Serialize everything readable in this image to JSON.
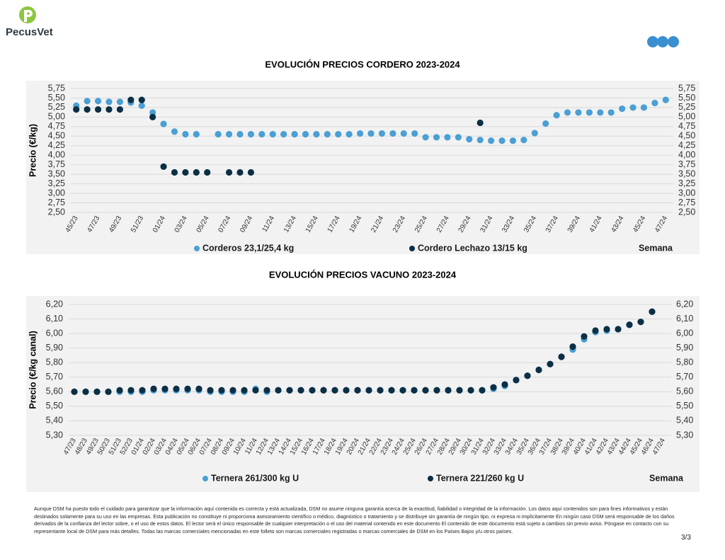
{
  "header": {
    "logo_text": "PecusVet"
  },
  "chart_data": [
    {
      "type": "scatter",
      "title": "EVOLUCIÓN PRECIOS CORDERO 2023-2024",
      "ylabel": "Precio (€/kg)",
      "xlabel": "Semana",
      "categories": [
        "45/23",
        null,
        "47/23",
        null,
        "49/23",
        null,
        "51/23",
        null,
        "01/24",
        null,
        "03/24",
        null,
        "05/24",
        null,
        "07/24",
        null,
        "09/24",
        null,
        "11/24",
        null,
        "13/24",
        null,
        "15/24",
        null,
        "17/24",
        null,
        "19/24",
        null,
        "21/24",
        null,
        "23/24",
        null,
        "25/24",
        null,
        "27/24",
        null,
        "29/24",
        null,
        "31/24",
        null,
        "33/24",
        null,
        "35/24",
        null,
        "37/24",
        null,
        "39/24",
        null,
        "41/24",
        null,
        "43/24",
        null,
        "45/24",
        null,
        "47/24"
      ],
      "series": [
        {
          "name": "Corderos 23,1/25,4 kg",
          "color": "#4a9fd4",
          "values": [
            5.3,
            5.42,
            5.42,
            5.4,
            5.4,
            5.38,
            5.3,
            5.12,
            4.82,
            4.62,
            4.55,
            4.55,
            null,
            4.55,
            4.55,
            4.55,
            4.55,
            4.55,
            4.55,
            4.55,
            4.55,
            4.55,
            4.55,
            4.55,
            4.55,
            4.55,
            4.57,
            4.57,
            4.57,
            4.57,
            4.57,
            4.57,
            4.47,
            4.47,
            4.47,
            4.47,
            4.42,
            4.4,
            4.38,
            4.38,
            4.38,
            4.4,
            4.58,
            4.83,
            5.05,
            5.12,
            5.12,
            5.12,
            5.12,
            5.12,
            5.22,
            5.25,
            5.25,
            5.37,
            5.45
          ]
        },
        {
          "name": "Cordero Lechazo 13/15 kg",
          "color": "#0b2f45",
          "values": [
            5.2,
            5.2,
            5.2,
            5.2,
            5.2,
            5.45,
            5.45,
            5.0,
            3.7,
            3.55,
            3.55,
            3.55,
            3.55,
            null,
            3.55,
            3.55,
            3.55,
            null,
            null,
            null,
            null,
            null,
            null,
            null,
            null,
            null,
            null,
            null,
            null,
            null,
            null,
            null,
            null,
            null,
            null,
            null,
            null,
            4.85,
            null,
            null,
            null,
            null,
            null,
            null,
            null,
            null,
            null,
            null,
            null,
            null,
            null,
            null,
            null,
            null,
            null
          ]
        }
      ],
      "ylim": [
        2.5,
        5.75
      ],
      "yticks": [
        {
          "value": 2.5,
          "label": "2,50"
        },
        {
          "value": 2.75,
          "label": "2,75"
        },
        {
          "value": 3,
          "label": "3,00"
        },
        {
          "value": 3.25,
          "label": "3,25"
        },
        {
          "value": 3.5,
          "label": "3,50"
        },
        {
          "value": 3.75,
          "label": "3,75"
        },
        {
          "value": 4,
          "label": "4,00"
        },
        {
          "value": 4.25,
          "label": "4,25"
        },
        {
          "value": 4.5,
          "label": "4,50"
        },
        {
          "value": 4.75,
          "label": "4,75"
        },
        {
          "value": 5,
          "label": "5,00"
        },
        {
          "value": 5.25,
          "label": "5,25"
        },
        {
          "value": 5.5,
          "label": "5,50"
        },
        {
          "value": 5.75,
          "label": "5,75"
        }
      ],
      "y2lim": [
        2.5,
        5.75
      ],
      "y2ticks": [
        {
          "value": 2.5,
          "label": "2,50"
        },
        {
          "value": 2.75,
          "label": "2,75"
        },
        {
          "value": 3,
          "label": "3,00"
        },
        {
          "value": 3.25,
          "label": "3,25"
        },
        {
          "value": 3.5,
          "label": "3,50"
        },
        {
          "value": 3.75,
          "label": "3,75"
        },
        {
          "value": 4,
          "label": "4,00"
        },
        {
          "value": 4.25,
          "label": "4,25"
        },
        {
          "value": 4.5,
          "label": "4,50"
        },
        {
          "value": 4.75,
          "label": "4,75"
        },
        {
          "value": 5,
          "label": "5,00"
        },
        {
          "value": 5.25,
          "label": "5,25"
        },
        {
          "value": 5.5,
          "label": "5,50"
        },
        {
          "value": 5.75,
          "label": "5,75"
        }
      ],
      "grid": true,
      "legend": "bottom"
    },
    {
      "type": "scatter",
      "title": "EVOLUCIÓN PRECIOS VACUNO 2023-2024",
      "ylabel": "Precio (€/kg canal)",
      "xlabel": "Semana",
      "categories": [
        "47/23",
        "48/23",
        "49/23",
        "50/23",
        "51/23",
        "52/23",
        "01/24",
        "02/24",
        "03/24",
        "04/24",
        "05/24",
        "06/24",
        "07/24",
        "08/24",
        "09/24",
        "10/24",
        "11/24",
        "12/24",
        "13/24",
        "14/24",
        "15/24",
        "16/24",
        "17/24",
        "18/24",
        "19/24",
        "20/24",
        "21/24",
        "22/24",
        "23/24",
        "24/24",
        "25/24",
        "26/24",
        "27/24",
        "28/24",
        "29/24",
        "30/24",
        "31/24",
        "32/24",
        "33/24",
        "34/24",
        "35/24",
        "36/24",
        "37/24",
        "38/24",
        "39/24",
        "40/24",
        "41/24",
        "42/24",
        "43/24",
        "44/24",
        "45/24",
        "46/24",
        "47/24"
      ],
      "series": [
        {
          "name": "Ternera 261/300 kg U",
          "color": "#4a9fd4",
          "values": [
            5.6,
            5.6,
            5.6,
            5.6,
            5.6,
            5.6,
            5.6,
            5.61,
            5.61,
            5.61,
            5.61,
            5.61,
            5.6,
            5.6,
            5.6,
            5.6,
            5.62,
            5.6,
            5.61,
            5.61,
            5.61,
            5.61,
            5.61,
            5.61,
            5.61,
            5.61,
            5.61,
            5.61,
            5.61,
            5.61,
            5.61,
            5.61,
            5.61,
            5.61,
            5.61,
            5.61,
            5.61,
            5.62,
            5.64,
            5.68,
            5.71,
            5.75,
            5.79,
            5.84,
            5.89,
            5.96,
            6.01,
            6.02,
            6.03,
            6.06,
            6.08,
            6.15,
            null
          ]
        },
        {
          "name": "Ternera 221/260 kg U",
          "color": "#0b2f45",
          "values": [
            5.6,
            5.6,
            5.6,
            5.6,
            5.61,
            5.61,
            5.61,
            5.62,
            5.62,
            5.62,
            5.62,
            5.62,
            5.61,
            5.61,
            5.61,
            5.61,
            5.61,
            5.61,
            5.61,
            5.61,
            5.61,
            5.61,
            5.61,
            5.61,
            5.61,
            5.61,
            5.61,
            5.61,
            5.61,
            5.61,
            5.61,
            5.61,
            5.61,
            5.61,
            5.61,
            5.61,
            5.61,
            5.63,
            5.65,
            5.68,
            5.71,
            5.75,
            5.79,
            5.84,
            5.91,
            5.98,
            6.02,
            6.03,
            6.03,
            6.06,
            6.08,
            6.15,
            null
          ]
        }
      ],
      "ylim": [
        5.3,
        6.2
      ],
      "yticks": [
        {
          "value": 5.3,
          "label": "5,30"
        },
        {
          "value": 5.4,
          "label": "5,40"
        },
        {
          "value": 5.5,
          "label": "5,50"
        },
        {
          "value": 5.6,
          "label": "5,60"
        },
        {
          "value": 5.7,
          "label": "5,70"
        },
        {
          "value": 5.8,
          "label": "5,80"
        },
        {
          "value": 5.9,
          "label": "5,90"
        },
        {
          "value": 6,
          "label": "6,00"
        },
        {
          "value": 6.1,
          "label": "6,10"
        },
        {
          "value": 6.2,
          "label": "6,20"
        }
      ],
      "y2lim": [
        5.3,
        6.2
      ],
      "y2ticks": [
        {
          "value": 5.3,
          "label": "5,30"
        },
        {
          "value": 5.4,
          "label": "5,40"
        },
        {
          "value": 5.5,
          "label": "5,50"
        },
        {
          "value": 5.6,
          "label": "5,60"
        },
        {
          "value": 5.7,
          "label": "5,70"
        },
        {
          "value": 5.8,
          "label": "5,80"
        },
        {
          "value": 5.9,
          "label": "5,90"
        },
        {
          "value": 6,
          "label": "6,00"
        },
        {
          "value": 6.1,
          "label": "6,10"
        },
        {
          "value": 6.2,
          "label": "6,20"
        }
      ],
      "grid": true,
      "legend": "bottom"
    }
  ],
  "footer": {
    "disclaimer": "Aunque DSM ha puesto todo el cuidado para garantizar que la información aquí contenida es correcta y está actualizada, DSM no asume ninguna garantía acerca de la exactitud, fiabilidad o integridad de la información. Los datos aquí contenidos son para fines informativos y están destinados solamente para su uso en las empresas. Esta publicación no constituye ni proporciona asesoramiento científico o médico, diagnóstico o tratamiento y se distribuye sin garantía de ningún tipo, ni expresa ni implícitamente En ningún caso DSM será responsable de los daños derivados de la confianza del lector sobre, o el uso de estos datos. El lector será el único responsable de cualquier interpretación o el uso del material contenido en este documento El contenido de este documento está sujeto a cambios sin previo aviso. Póngase en contacto con su representante local de DSM para más detalles. Todas las marcas comerciales mencionadas en este folleto son marcas comerciales registradas o marcas comerciales de DSM en los Países Bajos y/u otros países.",
    "page": "3/3"
  }
}
